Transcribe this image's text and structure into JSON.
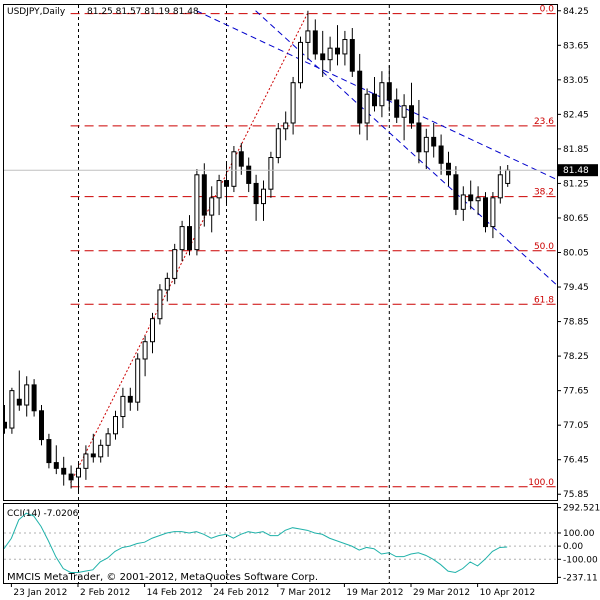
{
  "header": {
    "symbol": "USDJPY,Daily",
    "ohlc": "81.25 81.57 81.19 81.48"
  },
  "colors": {
    "candle_bull": "#ffffff",
    "candle_bear": "#000000",
    "fibo": "#cc0000",
    "channel": "#0000cc",
    "cci": "#20b2aa",
    "price_badge": "#000000"
  },
  "chart_data": [
    {
      "type": "candlestick",
      "title": "USDJPY,Daily",
      "ylim": [
        75.75,
        84.35
      ],
      "y_ticks": [
        84.25,
        83.65,
        83.05,
        82.45,
        81.85,
        81.25,
        80.65,
        80.05,
        79.45,
        78.85,
        78.25,
        77.65,
        77.05,
        76.45,
        75.85
      ],
      "y_tick_labels": [
        "84.25",
        "83.65",
        "83.05",
        "82.45",
        "81.85",
        "81.25",
        "80.65",
        "80.05",
        "79.45",
        "78.85",
        "78.25",
        "77.65",
        "77.05",
        "76.45",
        "75.85"
      ],
      "current_price": 81.48,
      "current_price_label": "81.48",
      "x_labels": [
        "23 Jan 2012",
        "2 Feb 2012",
        "14 Feb 2012",
        "24 Feb 2012",
        "7 Mar 2012",
        "19 Mar 2012",
        "29 Mar 2012",
        "10 Apr 2012"
      ],
      "x_label_index": [
        1,
        10,
        19,
        28,
        37,
        46,
        55,
        64
      ],
      "period_separators_index": [
        10,
        30,
        52
      ],
      "candles": [
        {
          "o": 77.1,
          "h": 77.4,
          "l": 76.9,
          "c": 77.0
        },
        {
          "o": 77.0,
          "h": 77.7,
          "l": 76.9,
          "c": 77.65
        },
        {
          "o": 77.5,
          "h": 78.0,
          "l": 77.3,
          "c": 77.4
        },
        {
          "o": 77.4,
          "h": 77.9,
          "l": 77.2,
          "c": 77.75
        },
        {
          "o": 77.75,
          "h": 77.85,
          "l": 77.2,
          "c": 77.3
        },
        {
          "o": 77.3,
          "h": 77.4,
          "l": 76.7,
          "c": 76.8
        },
        {
          "o": 76.8,
          "h": 76.9,
          "l": 76.3,
          "c": 76.4
        },
        {
          "o": 76.4,
          "h": 76.7,
          "l": 76.2,
          "c": 76.3
        },
        {
          "o": 76.3,
          "h": 76.5,
          "l": 76.0,
          "c": 76.2
        },
        {
          "o": 76.2,
          "h": 76.35,
          "l": 75.95,
          "c": 76.1
        },
        {
          "o": 76.15,
          "h": 76.4,
          "l": 75.9,
          "c": 76.3
        },
        {
          "o": 76.3,
          "h": 76.7,
          "l": 76.1,
          "c": 76.55
        },
        {
          "o": 76.55,
          "h": 76.9,
          "l": 76.4,
          "c": 76.5
        },
        {
          "o": 76.5,
          "h": 76.8,
          "l": 76.4,
          "c": 76.7
        },
        {
          "o": 76.7,
          "h": 77.0,
          "l": 76.5,
          "c": 76.9
        },
        {
          "o": 76.9,
          "h": 77.3,
          "l": 76.8,
          "c": 77.2
        },
        {
          "o": 77.2,
          "h": 77.7,
          "l": 77.0,
          "c": 77.55
        },
        {
          "o": 77.55,
          "h": 77.7,
          "l": 77.3,
          "c": 77.45
        },
        {
          "o": 77.45,
          "h": 78.3,
          "l": 77.3,
          "c": 78.2
        },
        {
          "o": 78.2,
          "h": 78.6,
          "l": 77.9,
          "c": 78.5
        },
        {
          "o": 78.5,
          "h": 79.0,
          "l": 78.3,
          "c": 78.9
        },
        {
          "o": 78.9,
          "h": 79.5,
          "l": 78.8,
          "c": 79.4
        },
        {
          "o": 79.4,
          "h": 79.7,
          "l": 79.2,
          "c": 79.6
        },
        {
          "o": 79.6,
          "h": 80.2,
          "l": 79.5,
          "c": 80.1
        },
        {
          "o": 80.1,
          "h": 80.6,
          "l": 79.9,
          "c": 80.5
        },
        {
          "o": 80.5,
          "h": 80.7,
          "l": 80.0,
          "c": 80.1
        },
        {
          "o": 80.1,
          "h": 81.5,
          "l": 80.0,
          "c": 81.4
        },
        {
          "o": 81.4,
          "h": 81.6,
          "l": 80.5,
          "c": 80.7
        },
        {
          "o": 80.7,
          "h": 81.2,
          "l": 80.4,
          "c": 81.0
        },
        {
          "o": 81.0,
          "h": 81.4,
          "l": 80.7,
          "c": 81.3
        },
        {
          "o": 81.3,
          "h": 81.6,
          "l": 80.9,
          "c": 81.2
        },
        {
          "o": 81.2,
          "h": 81.9,
          "l": 81.1,
          "c": 81.8
        },
        {
          "o": 81.8,
          "h": 81.95,
          "l": 81.4,
          "c": 81.55
        },
        {
          "o": 81.55,
          "h": 81.7,
          "l": 81.1,
          "c": 81.25
        },
        {
          "o": 81.25,
          "h": 81.4,
          "l": 80.6,
          "c": 80.9
        },
        {
          "o": 80.9,
          "h": 81.3,
          "l": 80.6,
          "c": 81.15
        },
        {
          "o": 81.15,
          "h": 81.8,
          "l": 81.0,
          "c": 81.7
        },
        {
          "o": 81.7,
          "h": 82.3,
          "l": 81.6,
          "c": 82.2
        },
        {
          "o": 82.2,
          "h": 82.5,
          "l": 82.0,
          "c": 82.3
        },
        {
          "o": 82.3,
          "h": 83.1,
          "l": 82.1,
          "c": 83.0
        },
        {
          "o": 83.0,
          "h": 83.8,
          "l": 82.9,
          "c": 83.7
        },
        {
          "o": 83.7,
          "h": 84.25,
          "l": 83.4,
          "c": 83.9
        },
        {
          "o": 83.9,
          "h": 84.1,
          "l": 83.4,
          "c": 83.5
        },
        {
          "o": 83.5,
          "h": 83.9,
          "l": 83.1,
          "c": 83.4
        },
        {
          "o": 83.4,
          "h": 83.8,
          "l": 83.2,
          "c": 83.6
        },
        {
          "o": 83.6,
          "h": 84.0,
          "l": 83.3,
          "c": 83.5
        },
        {
          "o": 83.5,
          "h": 83.9,
          "l": 83.3,
          "c": 83.75
        },
        {
          "o": 83.75,
          "h": 83.95,
          "l": 83.1,
          "c": 83.2
        },
        {
          "o": 83.2,
          "h": 83.5,
          "l": 82.1,
          "c": 82.3
        },
        {
          "o": 82.3,
          "h": 82.9,
          "l": 82.0,
          "c": 82.8
        },
        {
          "o": 82.8,
          "h": 83.1,
          "l": 82.5,
          "c": 82.6
        },
        {
          "o": 82.6,
          "h": 83.2,
          "l": 82.4,
          "c": 83.0
        },
        {
          "o": 83.0,
          "h": 83.3,
          "l": 82.5,
          "c": 82.7
        },
        {
          "o": 82.7,
          "h": 82.9,
          "l": 82.3,
          "c": 82.4
        },
        {
          "o": 82.4,
          "h": 82.8,
          "l": 82.0,
          "c": 82.6
        },
        {
          "o": 82.6,
          "h": 83.0,
          "l": 82.2,
          "c": 82.3
        },
        {
          "o": 82.3,
          "h": 82.7,
          "l": 81.6,
          "c": 81.8
        },
        {
          "o": 81.8,
          "h": 82.2,
          "l": 81.5,
          "c": 82.05
        },
        {
          "o": 82.05,
          "h": 82.3,
          "l": 81.7,
          "c": 81.9
        },
        {
          "o": 81.9,
          "h": 82.1,
          "l": 81.4,
          "c": 81.6
        },
        {
          "o": 81.6,
          "h": 81.8,
          "l": 81.2,
          "c": 81.4
        },
        {
          "o": 81.4,
          "h": 81.55,
          "l": 80.7,
          "c": 80.8
        },
        {
          "o": 80.8,
          "h": 81.2,
          "l": 80.6,
          "c": 81.05
        },
        {
          "o": 81.05,
          "h": 81.3,
          "l": 80.8,
          "c": 80.95
        },
        {
          "o": 80.95,
          "h": 81.2,
          "l": 80.7,
          "c": 81.0
        },
        {
          "o": 81.0,
          "h": 81.1,
          "l": 80.4,
          "c": 80.5
        },
        {
          "o": 80.5,
          "h": 81.1,
          "l": 80.3,
          "c": 81.0
        },
        {
          "o": 81.0,
          "h": 81.55,
          "l": 80.9,
          "c": 81.4
        },
        {
          "o": 81.25,
          "h": 81.57,
          "l": 81.19,
          "c": 81.48
        }
      ],
      "fibonacci": {
        "levels": [
          {
            "label": "0.0",
            "price": 84.2
          },
          {
            "label": "23.6",
            "price": 82.25
          },
          {
            "label": "38.2",
            "price": 81.02
          },
          {
            "label": "50.0",
            "price": 80.08
          },
          {
            "label": "61.8",
            "price": 79.15
          },
          {
            "label": "100.0",
            "price": 75.98
          }
        ],
        "trendline": [
          {
            "i": 9,
            "price": 76.05
          },
          {
            "i": 41,
            "price": 84.2
          }
        ]
      },
      "channel": {
        "upper": [
          {
            "i": 26,
            "price": 84.25
          },
          {
            "i": 75,
            "price": 81.3
          }
        ],
        "lower": [
          {
            "i": 34,
            "price": 84.25
          },
          {
            "i": 75,
            "price": 79.45
          }
        ]
      }
    },
    {
      "type": "line",
      "title": "CCI(14) -7.0206",
      "ylim": [
        -280,
        320
      ],
      "y_ticks": [
        292.5214,
        100.0,
        0.0,
        -100.0,
        -237.11
      ],
      "y_tick_labels": [
        "292.5214",
        "100.00",
        "0.00",
        "-100.00",
        "-237.11"
      ],
      "series": [
        {
          "values": [
            -20,
            60,
            200,
            250,
            230,
            150,
            40,
            -80,
            -170,
            -200,
            -200,
            -190,
            -180,
            -120,
            -90,
            -40,
            -10,
            0,
            20,
            30,
            60,
            80,
            100,
            110,
            110,
            100,
            110,
            90,
            60,
            80,
            90,
            60,
            90,
            110,
            100,
            110,
            80,
            80,
            120,
            140,
            130,
            120,
            100,
            90,
            60,
            40,
            20,
            0,
            -30,
            -10,
            -20,
            -60,
            -50,
            -80,
            -80,
            -60,
            -50,
            -70,
            -100,
            -140,
            -190,
            -200,
            -170,
            -120,
            -150,
            -100,
            -40,
            -10,
            -7.0206
          ]
        }
      ]
    }
  ],
  "footer": {
    "copyright": "MMCIS MetaTrader, © 2001-2012, MetaQuotes Software Corp."
  }
}
